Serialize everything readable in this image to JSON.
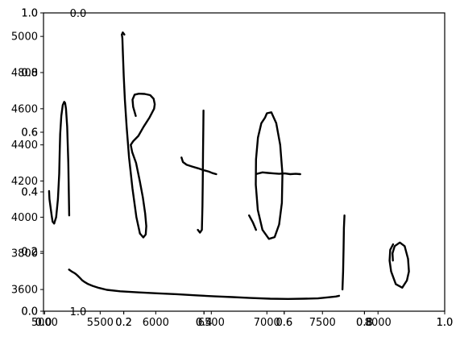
{
  "chart_data": {
    "type": "line",
    "title": "",
    "xlabel": "",
    "ylabel": "",
    "grid": false,
    "legend": "none",
    "axes": [
      {
        "id": "primary",
        "xlim": [
          4990,
          8600
        ],
        "ylim": [
          3480,
          5130
        ],
        "xticks": [
          5000,
          5500,
          6000,
          6500,
          7000,
          7500,
          8000
        ],
        "xtick_labels": [
          "5000",
          "5500",
          "6000",
          "6500",
          "7000",
          "7500",
          "8000"
        ],
        "yticks": [
          3600,
          3800,
          4000,
          4200,
          4400,
          4600,
          4800,
          5000
        ],
        "ytick_labels": [
          "3600",
          "3800",
          "4000",
          "4200",
          "4400",
          "4600",
          "4800",
          "5000"
        ]
      },
      {
        "id": "overlay_a",
        "xlim": [
          0.0,
          1.0
        ],
        "ylim": [
          0.0,
          1.0
        ],
        "xticks": [
          0.0,
          0.2,
          0.4,
          0.6,
          0.8,
          1.0
        ],
        "xtick_labels": [
          "0.0",
          "0.2",
          "0.4",
          "0.6",
          "0.8",
          "1.0"
        ],
        "yticks": [
          0.0,
          0.2,
          0.4,
          0.6,
          0.8,
          1.0
        ],
        "ytick_labels": [
          "0.0",
          "0.2",
          "0.4",
          "0.6",
          "0.8",
          "1.0"
        ]
      },
      {
        "id": "overlay_b",
        "xlim": [
          0.0,
          1.0
        ],
        "ylim": [
          0.0,
          1.0
        ],
        "xticks": [
          0.0,
          0.2,
          0.4,
          0.6,
          0.8,
          1.0
        ],
        "xtick_labels": [
          "0.0",
          "0.2",
          "0.4",
          "0.6",
          "0.8",
          "1.0"
        ],
        "yticks": [
          0.0,
          0.2,
          0.4,
          0.6,
          0.8,
          1.0
        ],
        "ytick_labels": [
          "0.0",
          "0.2",
          "0.4",
          "0.6",
          "0.8",
          "1.0"
        ]
      }
    ],
    "series": [
      {
        "id": "sqrt-stroke",
        "x": [
          5220,
          5243,
          5266,
          5280,
          5295,
          5318,
          5340,
          5363,
          5392,
          5432,
          5488,
          5560,
          5680,
          5850,
          6010,
          6190,
          6360,
          6530,
          6690,
          6850,
          7030,
          7190,
          7330,
          7460,
          7560,
          7620,
          7650
        ],
        "y": [
          3710,
          3700,
          3692,
          3686,
          3678,
          3664,
          3650,
          3640,
          3630,
          3620,
          3609,
          3598,
          3590,
          3584,
          3579,
          3574,
          3568,
          3562,
          3558,
          3553,
          3549,
          3548,
          3549,
          3551,
          3557,
          3561,
          3565
        ]
      },
      {
        "id": "sqrt-hook",
        "x": [
          5086,
          5104,
          5120,
          5131,
          5136,
          5140,
          5150,
          5163,
          5176,
          5184,
          5192,
          5203,
          5213,
          5221
        ],
        "y": [
          3965,
          4000,
          4100,
          4240,
          4360,
          4460,
          4560,
          4620,
          4638,
          4632,
          4600,
          4500,
          4300,
          4010
        ]
      },
      {
        "id": "tick-tail",
        "x": [
          5086,
          5072,
          5063,
          5052,
          5044,
          5040
        ],
        "y": [
          3965,
          3975,
          4010,
          4060,
          4100,
          4145
        ]
      },
      {
        "id": "beta-stem",
        "x": [
          5695,
          5700,
          5705,
          5712,
          5722,
          5738,
          5760,
          5790,
          5826,
          5858
        ],
        "y": [
          5010,
          4990,
          4900,
          4780,
          4650,
          4500,
          4330,
          4160,
          4000,
          3910
        ]
      },
      {
        "id": "beta-bowls",
        "x": [
          5858,
          5888,
          5910,
          5915,
          5905,
          5884,
          5856,
          5823,
          5788,
          5775,
          5797,
          5844,
          5890,
          5945,
          5985,
          5991,
          5981,
          5950,
          5900,
          5848,
          5810,
          5791,
          5797,
          5820
        ],
        "y": [
          3910,
          3888,
          3905,
          3950,
          4020,
          4110,
          4200,
          4300,
          4360,
          4400,
          4420,
          4450,
          4500,
          4552,
          4600,
          4625,
          4655,
          4675,
          4682,
          4683,
          4678,
          4650,
          4610,
          4560
        ]
      },
      {
        "id": "beta-top",
        "x": [
          5695,
          5703,
          5718
        ],
        "y": [
          5010,
          5022,
          5010
        ]
      },
      {
        "id": "plus-horizontal",
        "x": [
          6232,
          6245,
          6278,
          6328,
          6382,
          6431,
          6478,
          6510,
          6544
        ],
        "y": [
          4330,
          4305,
          4290,
          4280,
          4270,
          4260,
          4252,
          4244,
          4238
        ]
      },
      {
        "id": "plus-vertical",
        "x": [
          6430,
          6428,
          6425,
          6423,
          6420,
          6415,
          6398,
          6379
        ],
        "y": [
          4590,
          4500,
          4350,
          4200,
          4060,
          3930,
          3915,
          3930
        ]
      },
      {
        "id": "theta-loop",
        "x": [
          6983,
          6950,
          6920,
          6902,
          6900,
          6918,
          6960,
          7018,
          7070,
          7110,
          7135,
          7140,
          7120,
          7084,
          7040,
          7000,
          6983
        ],
        "y": [
          4550,
          4520,
          4440,
          4320,
          4180,
          4040,
          3930,
          3880,
          3890,
          3960,
          4080,
          4240,
          4400,
          4520,
          4580,
          4575,
          4550
        ]
      },
      {
        "id": "theta-bar",
        "x": [
          6910,
          6960,
          7010,
          7060,
          7110,
          7160,
          7210,
          7260,
          7300
        ],
        "y": [
          4240,
          4248,
          4245,
          4242,
          4240,
          4242,
          4238,
          4240,
          4238
        ]
      },
      {
        "id": "theta-hook",
        "x": [
          6840,
          6875,
          6902
        ],
        "y": [
          4010,
          3970,
          3930
        ]
      },
      {
        "id": "one",
        "x": [
          7680,
          7686,
          7690,
          7693,
          7698
        ],
        "y": [
          3600,
          3700,
          3830,
          3940,
          4010
        ]
      },
      {
        "id": "zero",
        "x": [
          8136,
          8110,
          8104,
          8118,
          8160,
          8218,
          8260,
          8278,
          8270,
          8240,
          8196,
          8150,
          8130,
          8134
        ],
        "y": [
          3850,
          3820,
          3760,
          3700,
          3630,
          3610,
          3650,
          3700,
          3770,
          3840,
          3860,
          3840,
          3800,
          3760
        ]
      }
    ]
  },
  "style": {
    "background": "#ffffff",
    "axis_color": "#000000",
    "ink_color": "#000000"
  }
}
